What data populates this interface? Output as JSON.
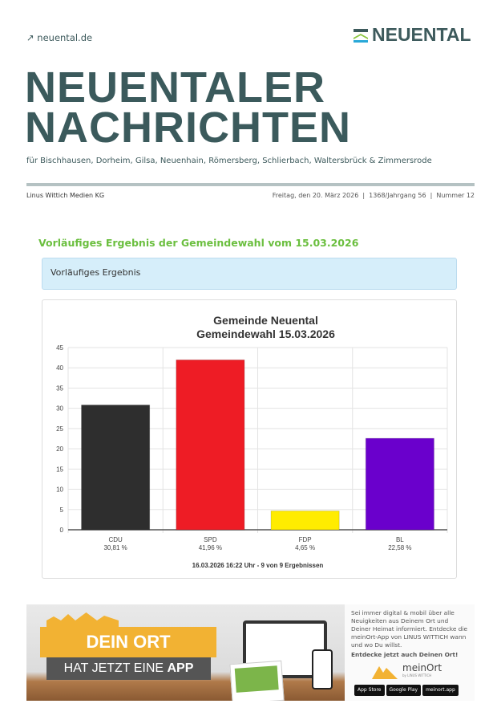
{
  "header": {
    "site_link": "↗ neuental.de",
    "logo_text": "NEUENTAL",
    "title_line1": "NEUENTALER",
    "title_line2": "NACHRICHTEN",
    "subtitle": "für Bischhausen, Dorheim, Gilsa, Neuenhain, Römersberg, Schlierbach, Waltersbrück & Zimmersrode",
    "publisher": "Linus Wittich Medien KG",
    "issue": "Freitag, den 20. März 2026  |  1368/Jahrgang 56  |  Nummer 12"
  },
  "article": {
    "headline": "Vorläufiges Ergebnis der Gemeindewahl vom 15.03.2026",
    "info_label": "Vorläufiges Ergebnis",
    "accent_color": "#6bbf3f"
  },
  "chart_data": {
    "type": "bar",
    "title": [
      "Gemeinde Neuental",
      "Gemeindewahl 15.03.2026"
    ],
    "categories": [
      "CDU",
      "SPD",
      "FDP",
      "BL"
    ],
    "values": [
      30.81,
      41.96,
      4.65,
      22.58
    ],
    "value_labels": [
      "30,81 %",
      "41,96 %",
      "4,65 %",
      "22,58 %"
    ],
    "colors": [
      "#2e2e2e",
      "#ee1c25",
      "#ffec00",
      "#6a00cc"
    ],
    "ylim": [
      0,
      45
    ],
    "yticks": [
      0,
      5,
      10,
      15,
      20,
      25,
      30,
      35,
      40,
      45
    ],
    "grid": true,
    "footer": "16.03.2026 16:22 Uhr - 9 von 9 Ergebnissen"
  },
  "banner": {
    "headline": "DEIN ORT",
    "subline_a": "HAT JETZT EINE ",
    "subline_b": "APP",
    "text": "Sei immer digital & mobil über alle Neuigkeiten aus Deinem Ort und Deiner Heimat informiert. Entdecke die meinOrt-App von LINUS WITTICH wann und wo Du willst.",
    "cta": "Entdecke jetzt auch Deinen Ort!",
    "brand": "meinOrt",
    "brand_by": "by LINUS WITTICH",
    "stores": [
      "App Store",
      "Google Play",
      "meinort.app"
    ]
  }
}
